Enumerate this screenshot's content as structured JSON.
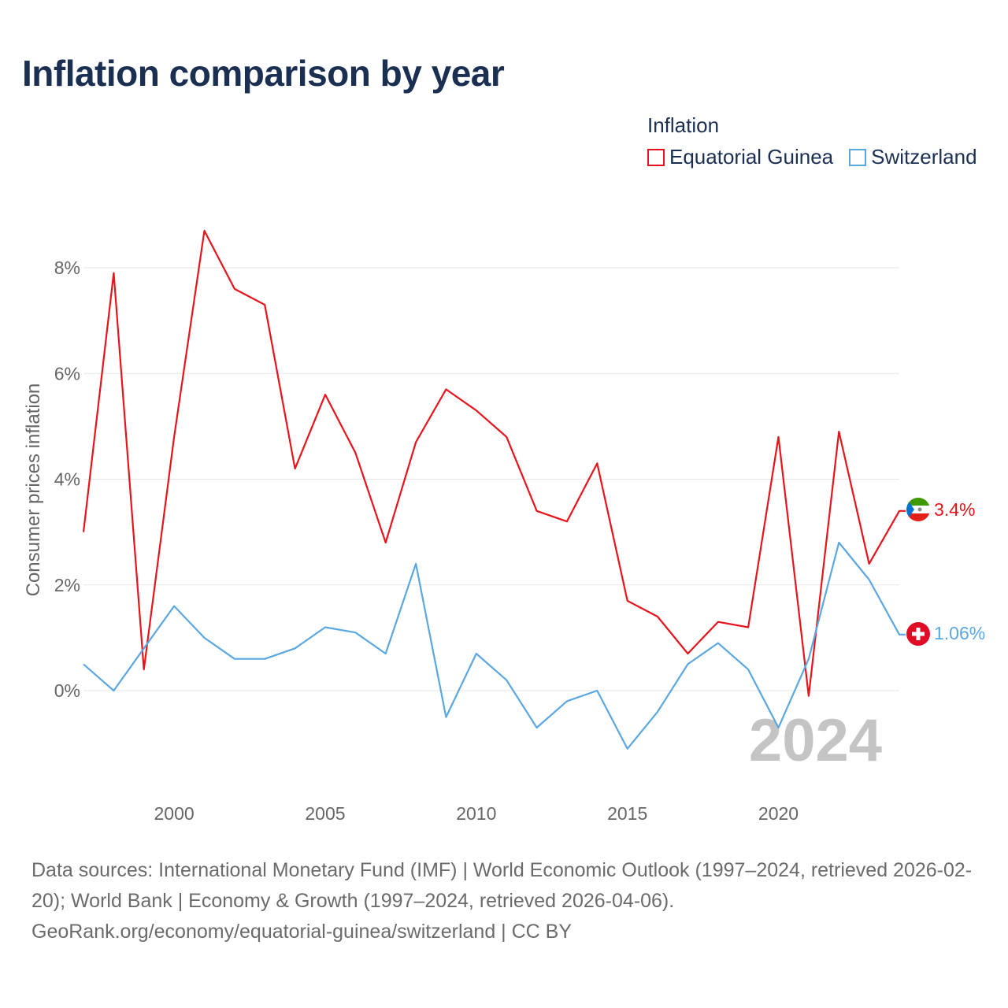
{
  "title": "Inflation comparison by year",
  "legend": {
    "title": "Inflation",
    "items": [
      {
        "name": "Equatorial Guinea",
        "color": "#e8141c"
      },
      {
        "name": "Switzerland",
        "color": "#5aa7e2"
      }
    ]
  },
  "year_watermark": "2024",
  "end_labels": {
    "equatorial_guinea": "3.4%",
    "switzerland": "1.06%"
  },
  "source": {
    "line1": "Data sources: International Monetary Fund (IMF) | World Economic Outlook (1997–2024, retrieved 2026-02-20); World Bank | Economy & Growth (1997–2024, retrieved 2026-04-06).",
    "line2": "GeoRank.org/economy/equatorial-guinea/switzerland | CC BY"
  },
  "chart_data": {
    "type": "line",
    "title": "Inflation comparison by year",
    "xlabel": "",
    "ylabel": "Consumer prices inflation",
    "xlim": [
      1997,
      2024
    ],
    "ylim": [
      -1.7,
      8.9
    ],
    "yticks": [
      0,
      2,
      4,
      6,
      8
    ],
    "ytick_labels": [
      "0%",
      "2%",
      "4%",
      "6%",
      "8%"
    ],
    "xticks": [
      2000,
      2005,
      2010,
      2015,
      2020
    ],
    "xtick_labels": [
      "2000",
      "2005",
      "2010",
      "2015",
      "2020"
    ],
    "grid": true,
    "legend_position": "top-right",
    "x": [
      1997,
      1998,
      1999,
      2000,
      2001,
      2002,
      2003,
      2004,
      2005,
      2006,
      2007,
      2008,
      2009,
      2010,
      2011,
      2012,
      2013,
      2014,
      2015,
      2016,
      2017,
      2018,
      2019,
      2020,
      2021,
      2022,
      2023,
      2024
    ],
    "series": [
      {
        "name": "Equatorial Guinea",
        "color": "#e8141c",
        "values": [
          3.0,
          7.9,
          0.4,
          4.8,
          8.7,
          7.6,
          7.3,
          4.2,
          5.6,
          4.5,
          2.8,
          4.7,
          5.7,
          5.3,
          4.8,
          3.4,
          3.2,
          4.3,
          1.7,
          1.4,
          0.7,
          1.3,
          1.2,
          4.8,
          -0.1,
          4.9,
          2.4,
          3.4
        ]
      },
      {
        "name": "Switzerland",
        "color": "#5aa7e2",
        "values": [
          0.5,
          0.0,
          0.8,
          1.6,
          1.0,
          0.6,
          0.6,
          0.8,
          1.2,
          1.1,
          0.7,
          2.4,
          -0.5,
          0.7,
          0.2,
          -0.7,
          -0.2,
          0.0,
          -1.1,
          -0.4,
          0.5,
          0.9,
          0.4,
          -0.7,
          0.6,
          2.8,
          2.1,
          1.06
        ]
      }
    ]
  }
}
